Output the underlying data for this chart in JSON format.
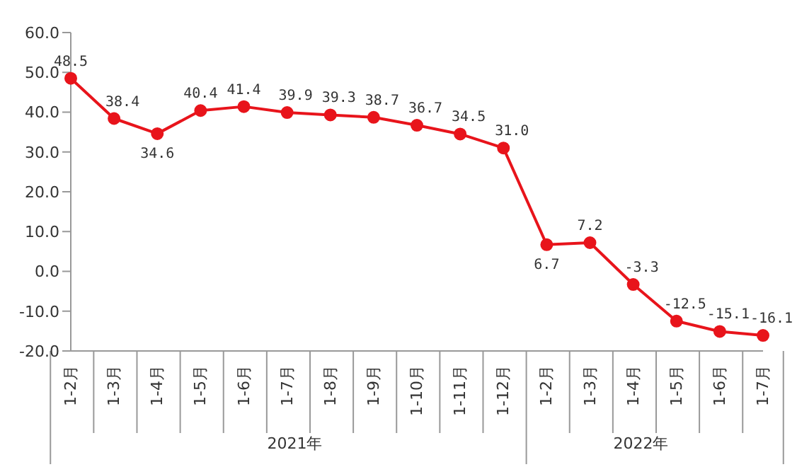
{
  "chart_data": {
    "type": "line",
    "categories": [
      "1-2月",
      "1-3月",
      "1-4月",
      "1-5月",
      "1-6月",
      "1-7月",
      "1-8月",
      "1-9月",
      "1-10月",
      "1-11月",
      "1-12月",
      "1-2月",
      "1-3月",
      "1-4月",
      "1-5月",
      "1-6月",
      "1-7月"
    ],
    "values": [
      48.5,
      38.4,
      34.6,
      40.4,
      41.4,
      39.9,
      39.3,
      38.7,
      36.7,
      34.5,
      31.0,
      6.7,
      7.2,
      -3.3,
      -12.5,
      -15.1,
      -16.1
    ],
    "value_labels": [
      "48.5",
      "38.4",
      "34.6",
      "40.4",
      "41.4",
      "39.9",
      "39.3",
      "38.7",
      "36.7",
      "34.5",
      "31.0",
      "6.7",
      "7.2",
      "-3.3",
      "-12.5",
      "-15.1",
      "-16.1"
    ],
    "color": "#e8141b",
    "marker": "circle",
    "line_style": "solid",
    "grid": false,
    "legend": false,
    "ylim": [
      -20,
      60
    ],
    "yticks": [
      {
        "value": -20,
        "label": "-20.0"
      },
      {
        "value": -10,
        "label": "-10.0"
      },
      {
        "value": 0,
        "label": "0.0"
      },
      {
        "value": 10,
        "label": "10.0"
      },
      {
        "value": 20,
        "label": "20.0"
      },
      {
        "value": 30,
        "label": "30.0"
      },
      {
        "value": 40,
        "label": "40.0"
      },
      {
        "value": 50,
        "label": "50.0"
      },
      {
        "value": 60,
        "label": "60.0"
      }
    ],
    "annotations": [
      "2021年",
      "2022年"
    ]
  }
}
